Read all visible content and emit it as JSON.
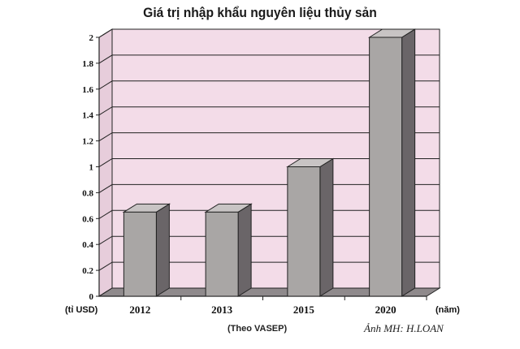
{
  "chart_data": {
    "type": "bar",
    "title": "Giá trị nhập khẩu nguyên liệu thủy sản",
    "categories": [
      "2012",
      "2013",
      "2015",
      "2020"
    ],
    "values": [
      0.65,
      0.65,
      1.0,
      2.0
    ],
    "ylabel": "(tỉ USD)",
    "xlabel": "(năm)",
    "ylim": [
      0,
      2
    ],
    "yticks": [
      "0",
      "0.2",
      "0.4",
      "0.6",
      "0.8",
      "1",
      "1.2",
      "1.4",
      "1.6",
      "1.8",
      "2"
    ],
    "grid": true,
    "style": "3d",
    "colors": {
      "bar_front": "#a9a6a5",
      "bar_side": "#6a6568",
      "bar_top": "#c8c4c4",
      "wall": "#f3dce8",
      "floor": "#8f8a8c"
    }
  },
  "footer": {
    "source": "(Theo VASEP)",
    "credit": "Ảnh MH: H.LOAN"
  }
}
